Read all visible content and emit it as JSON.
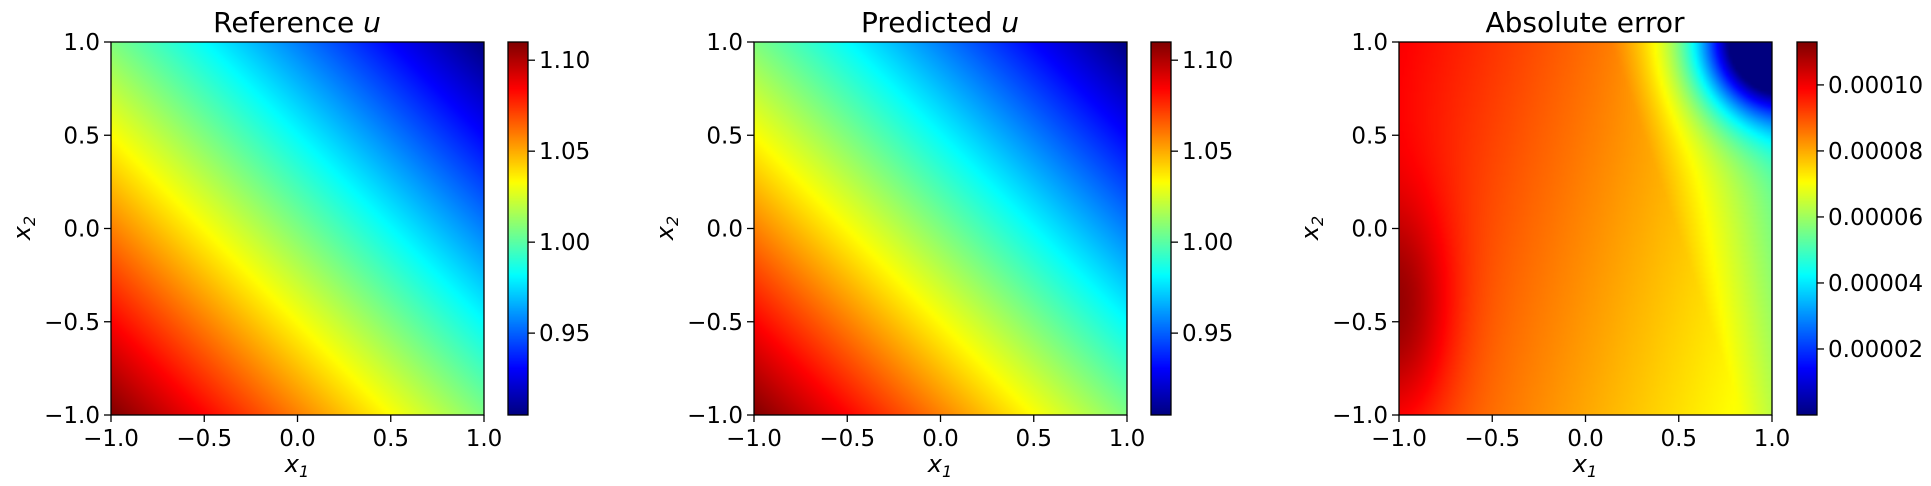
{
  "figure": {
    "colormap": "jet",
    "jet_stops": [
      "#00007f",
      "#0000ff",
      "#007fff",
      "#00ffff",
      "#7fff7f",
      "#ffff00",
      "#ff7f00",
      "#ff0000",
      "#7f0000"
    ]
  },
  "chart_data": [
    {
      "type": "heatmap",
      "title": "Reference u",
      "title_main": "Reference ",
      "title_var": "u",
      "xlabel_var": "x",
      "xlabel_sub": "1",
      "ylabel_var": "x",
      "ylabel_sub": "2",
      "xlim": [
        -1.0,
        1.0
      ],
      "ylim": [
        -1.0,
        1.0
      ],
      "xticks": [
        "−1.0",
        "−0.5",
        "0.0",
        "0.5",
        "1.0"
      ],
      "yticks": [
        "−1.0",
        "−0.5",
        "0.0",
        "0.5",
        "1.0"
      ],
      "field": "linear",
      "value_range": [
        0.9,
        1.1
      ],
      "colorbar_range": [
        0.905,
        1.11
      ],
      "colorbar_ticks": [
        0.95,
        1.0,
        1.05,
        1.1
      ],
      "colorbar_labels": [
        "0.95",
        "1.00",
        "1.05",
        "1.10"
      ]
    },
    {
      "type": "heatmap",
      "title": "Predicted u",
      "title_main": "Predicted ",
      "title_var": "u",
      "xlabel_var": "x",
      "xlabel_sub": "1",
      "ylabel_var": "x",
      "ylabel_sub": "2",
      "xlim": [
        -1.0,
        1.0
      ],
      "ylim": [
        -1.0,
        1.0
      ],
      "xticks": [
        "−1.0",
        "−0.5",
        "0.0",
        "0.5",
        "1.0"
      ],
      "yticks": [
        "−1.0",
        "−0.5",
        "0.0",
        "0.5",
        "1.0"
      ],
      "field": "linear",
      "value_range": [
        0.9,
        1.1
      ],
      "colorbar_range": [
        0.905,
        1.11
      ],
      "colorbar_ticks": [
        0.95,
        1.0,
        1.05,
        1.1
      ],
      "colorbar_labels": [
        "0.95",
        "1.00",
        "1.05",
        "1.10"
      ]
    },
    {
      "type": "heatmap",
      "title": "Absolute error",
      "title_main": "Absolute error",
      "title_var": "",
      "xlabel_var": "x",
      "xlabel_sub": "1",
      "ylabel_var": "x",
      "ylabel_sub": "2",
      "xlim": [
        -1.0,
        1.0
      ],
      "ylim": [
        -1.0,
        1.0
      ],
      "xticks": [
        "−1.0",
        "−0.5",
        "0.0",
        "0.5",
        "1.0"
      ],
      "yticks": [
        "−1.0",
        "−0.5",
        "0.0",
        "0.5",
        "1.0"
      ],
      "field": "error",
      "value_range": [
        0.0,
        0.000113
      ],
      "colorbar_range": [
        0.0,
        0.000113
      ],
      "colorbar_ticks": [
        2e-05,
        4e-05,
        6e-05,
        8e-05,
        0.0001
      ],
      "colorbar_labels": [
        "0.00002",
        "0.00004",
        "0.00006",
        "0.00008",
        "0.00010"
      ]
    }
  ]
}
